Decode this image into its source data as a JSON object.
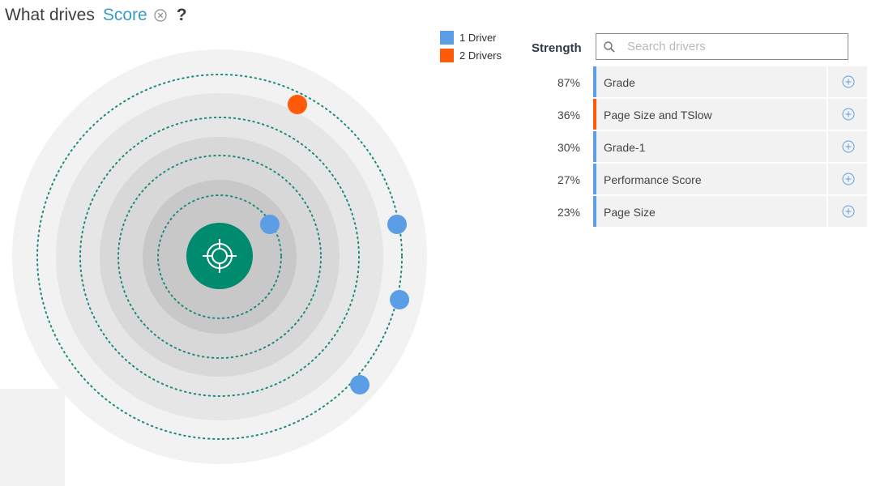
{
  "header": {
    "lead": "What drives",
    "target": "Score",
    "question_mark": "?",
    "clear_icon": "close-circle-icon"
  },
  "legend": [
    {
      "label": "1 Driver",
      "color": "#5b9ee6"
    },
    {
      "label": "2 Drivers",
      "color": "#ff5a0a"
    }
  ],
  "strength_title": "Strength",
  "search": {
    "placeholder": "Search drivers",
    "value": "",
    "icon": "search-icon"
  },
  "drivers": [
    {
      "pct": "87%",
      "name": "Grade",
      "type": "1 Driver",
      "bar_color": "#5b9ee6"
    },
    {
      "pct": "36%",
      "name": "Page Size and TSlow",
      "type": "2 Drivers",
      "bar_color": "#ff5a0a"
    },
    {
      "pct": "30%",
      "name": "Grade-1",
      "type": "1 Driver",
      "bar_color": "#5b9ee6"
    },
    {
      "pct": "27%",
      "name": "Performance Score",
      "type": "1 Driver",
      "bar_color": "#5b9ee6"
    },
    {
      "pct": "23%",
      "name": "Page Size",
      "type": "1 Driver",
      "bar_color": "#5b9ee6"
    }
  ],
  "visualization": {
    "center_icon": "target-crosshair-icon",
    "center_color": "#008a6e",
    "orbit_color": "#1d8a7e",
    "ring_colors": [
      "#f2f2f2",
      "#e6e6e6",
      "#d8d8d8",
      "#c8c8c8"
    ]
  },
  "colors": {
    "accent_blue": "#3a9bc4",
    "driver_single": "#5b9ee6",
    "driver_double": "#ff5a0a"
  }
}
